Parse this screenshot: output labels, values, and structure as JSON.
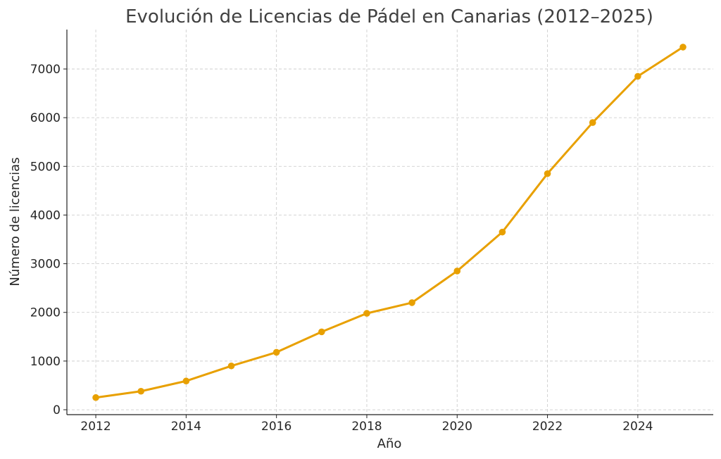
{
  "chart_data": {
    "type": "line",
    "title": "Evolución de Licencias de Pádel en Canarias (2012–2025)",
    "xlabel": "Año",
    "ylabel": "Número de licencias",
    "x": [
      2012,
      2013,
      2014,
      2015,
      2016,
      2017,
      2018,
      2019,
      2020,
      2021,
      2022,
      2023,
      2024,
      2025
    ],
    "series": [
      {
        "name": "Licencias",
        "values": [
          250,
          380,
          590,
          900,
          1180,
          1600,
          1980,
          2200,
          2850,
          3650,
          4850,
          5900,
          6850,
          7450
        ],
        "color": "#E8A000",
        "marker": "circle"
      }
    ],
    "xticks": [
      2012,
      2014,
      2016,
      2018,
      2020,
      2022,
      2024
    ],
    "yticks": [
      0,
      1000,
      2000,
      3000,
      4000,
      5000,
      6000,
      7000
    ],
    "xlim": [
      2011.36,
      2025.67
    ],
    "ylim": [
      -101,
      7810
    ],
    "grid": true,
    "legend": "none"
  }
}
